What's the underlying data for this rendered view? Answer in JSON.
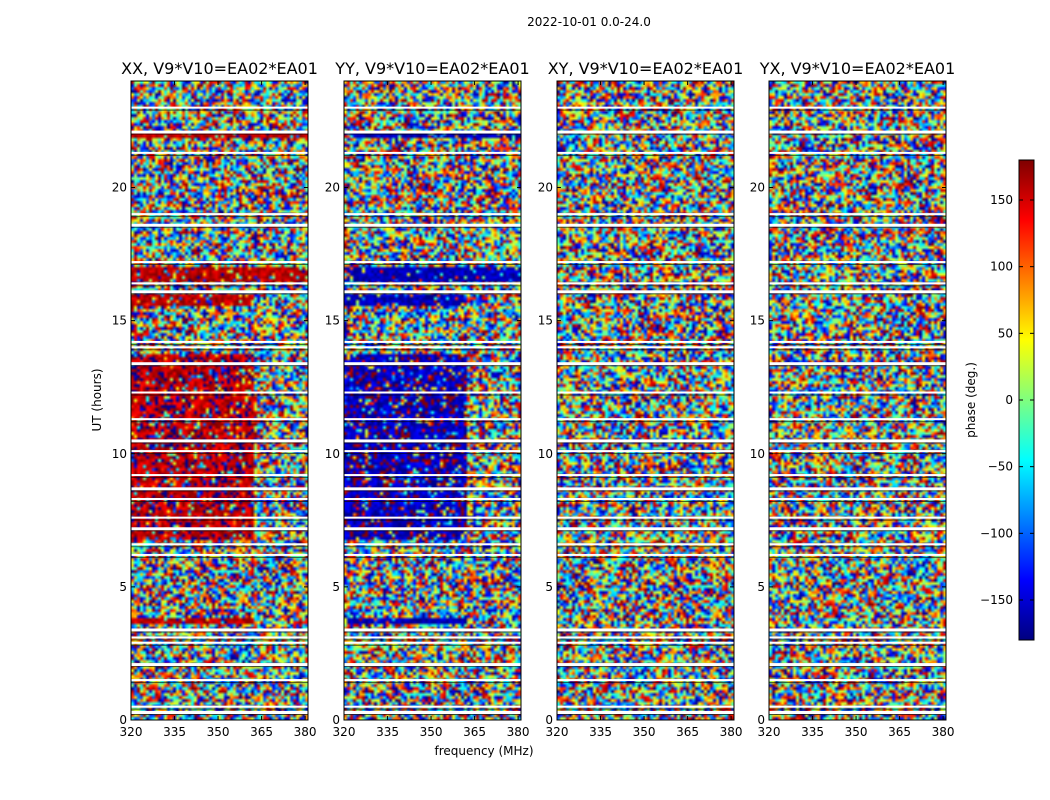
{
  "suptitle": "2022-10-01 0.0-24.0",
  "chart_data": {
    "type": "heatmap",
    "suptitle": "2022-10-01 0.0-24.0",
    "xlabel": "frequency (MHz)",
    "ylabel": "UT (hours)",
    "xlim": [
      320,
      381
    ],
    "ylim": [
      0,
      24
    ],
    "xticks": [
      320,
      335,
      350,
      365,
      380
    ],
    "yticks": [
      0,
      5,
      10,
      15,
      20
    ],
    "colorbar": {
      "label": "phase (deg.)",
      "range": [
        -180,
        180
      ],
      "ticks": [
        150,
        100,
        50,
        0,
        -50,
        -100,
        -150
      ],
      "tick_labels": [
        "150",
        "100",
        "50",
        "0",
        "−50",
        "−100",
        "−150"
      ],
      "colormap": [
        "#00007f",
        "#0000ff",
        "#007fff",
        "#00ffff",
        "#7fff7f",
        "#ffff00",
        "#ff7f00",
        "#ff0000",
        "#7f0000"
      ]
    },
    "panels": [
      {
        "title": "XX, V9*V10=EA02*EA01",
        "signature": "positive"
      },
      {
        "title": "YY, V9*V10=EA02*EA01",
        "signature": "negative"
      },
      {
        "title": "XY, V9*V10=EA02*EA01",
        "signature": "noise"
      },
      {
        "title": "YX, V9*V10=EA02*EA01",
        "signature": "noise"
      }
    ],
    "coherent_band": {
      "hours": [
        6.8,
        13.8
      ],
      "freq_mhz": [
        320,
        362
      ],
      "xx_phase_deg": 160,
      "yy_phase_deg": -160
    },
    "secondary_bands": [
      {
        "hours": [
          15.5,
          16.0
        ],
        "freq_mhz": [
          320,
          362
        ]
      },
      {
        "hours": [
          16.5,
          17.0
        ],
        "freq_mhz": [
          320,
          381
        ]
      },
      {
        "hours": [
          3.6,
          3.8
        ],
        "freq_mhz": [
          320,
          362
        ]
      },
      {
        "hours": [
          21.9,
          22.1
        ],
        "freq_mhz": [
          320,
          381
        ]
      }
    ],
    "flagged_hours": [
      0.3,
      0.5,
      1.5,
      2.1,
      2.9,
      3.1,
      3.4,
      6.2,
      6.6,
      7.2,
      7.6,
      8.3,
      8.7,
      9.2,
      10.1,
      10.5,
      11.3,
      12.3,
      13.4,
      14.0,
      14.2,
      16.1,
      16.4,
      17.2,
      18.6,
      19.0,
      21.3,
      22.1,
      23.0
    ]
  }
}
